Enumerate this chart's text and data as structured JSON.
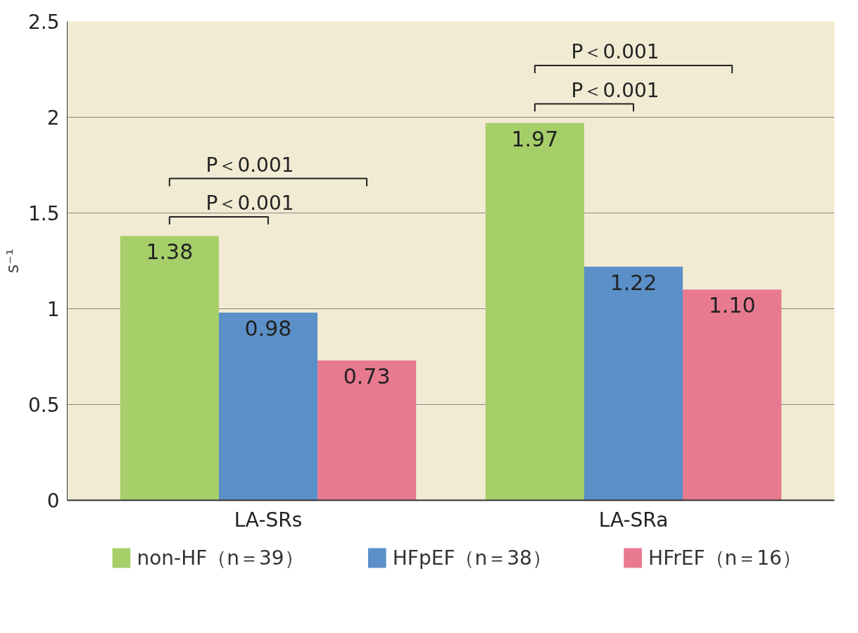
{
  "chart_data": {
    "type": "bar",
    "ylabel": "s⁻¹",
    "categories": [
      "LA-SRs",
      "LA-SRa"
    ],
    "series": [
      {
        "name": "non-HF（n＝39）",
        "color": "#a6cf6a",
        "values": [
          1.38,
          1.97
        ]
      },
      {
        "name": "HFpEF（n＝38）",
        "color": "#5b8fc7",
        "values": [
          0.98,
          1.22
        ]
      },
      {
        "name": "HFrEF（n＝16）",
        "color": "#e87a90",
        "values": [
          0.73,
          1.1
        ]
      }
    ],
    "value_labels": [
      [
        "1.38",
        "1.97"
      ],
      [
        "0.98",
        "1.22"
      ],
      [
        "0.73",
        "1.10"
      ]
    ],
    "ylim": [
      0,
      2.5
    ],
    "yticks": [
      0,
      0.5,
      1,
      1.5,
      2,
      2.5
    ],
    "grid": "y",
    "legend": "bottom",
    "annotations": [
      "P＜0.001",
      "P＜0.001",
      "P＜0.001",
      "P＜0.001"
    ]
  }
}
